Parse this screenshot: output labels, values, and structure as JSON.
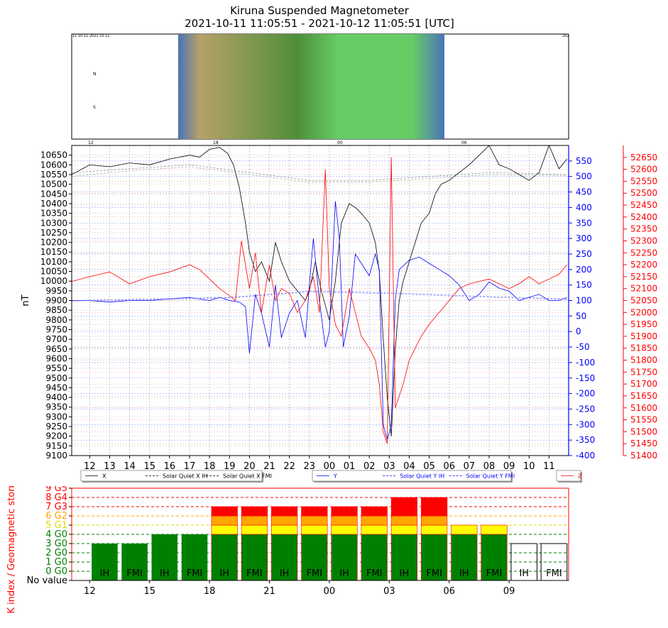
{
  "header": {
    "title_line1": "Kiruna Suspended Magnetometer",
    "title_line2": "2021-10-11 11:05:51 - 2021-10-12 11:05:51 [UTC]"
  },
  "keogram": {
    "left_labels": [
      "N",
      "S"
    ],
    "top_left_text": "11 10 11 2021 10 11",
    "top_right_text": "202",
    "bottom_ticks": [
      "12",
      "18",
      "00",
      "06"
    ],
    "colors": [
      "#4a73b8",
      "#b7a06a",
      "#4f8f3a",
      "#66cc66",
      "#4a73b8"
    ]
  },
  "legend": {
    "x": [
      "X",
      "Solar Quiet X IH",
      "Solar Quiet X FMI"
    ],
    "y": [
      "Y",
      "Solar Quiet Y IH",
      "Solar Quiet Y FMI"
    ],
    "z": [
      "Z"
    ]
  },
  "chart_data": [
    {
      "type": "line",
      "ylabel": "nT",
      "x_ticks": [
        "12",
        "13",
        "14",
        "15",
        "16",
        "17",
        "18",
        "19",
        "20",
        "21",
        "22",
        "23",
        "00",
        "01",
        "02",
        "03",
        "04",
        "05",
        "06",
        "07",
        "08",
        "09",
        "10",
        "11"
      ],
      "left_axis": {
        "color": "#000000",
        "ylim": [
          9100,
          10700
        ],
        "tick_start": 9100,
        "tick_end": 10650,
        "tick_step": 50
      },
      "right_axis_y": {
        "color": "#0000ff",
        "ylim": [
          -400,
          600
        ],
        "tick_start": -400,
        "tick_end": 550,
        "tick_step": 50
      },
      "right_axis_z": {
        "color": "#ff0000",
        "ylim": [
          51400,
          52700
        ],
        "tick_start": 51400,
        "tick_end": 52650,
        "tick_step": 50
      },
      "series": [
        {
          "name": "X",
          "color": "#000000",
          "axis": "left",
          "x": [
            11.1,
            12,
            13,
            14,
            15,
            16,
            17,
            17.5,
            18,
            18.5,
            18.9,
            19.2,
            19.5,
            19.8,
            20,
            20.3,
            20.6,
            21,
            21.3,
            21.6,
            22,
            22.4,
            22.8,
            23,
            23.3,
            23.6,
            24,
            24.3,
            24.6,
            25,
            25.3,
            25.6,
            26,
            26.3,
            26.5,
            26.7,
            26.9,
            27.1,
            27.3,
            27.5,
            27.7,
            28,
            28.3,
            28.6,
            29,
            29.3,
            29.6,
            30,
            30.5,
            31,
            31.5,
            32,
            32.5,
            33,
            33.5,
            34,
            34.5,
            35,
            35.5,
            35.9
          ],
          "y": [
            10550,
            10600,
            10590,
            10610,
            10600,
            10630,
            10650,
            10640,
            10680,
            10690,
            10660,
            10600,
            10480,
            10300,
            10150,
            10050,
            10100,
            10000,
            10200,
            10100,
            10000,
            9950,
            9900,
            9950,
            10100,
            9950,
            9800,
            10000,
            10300,
            10400,
            10380,
            10350,
            10300,
            10200,
            10050,
            9700,
            9400,
            9200,
            9650,
            9900,
            10000,
            10100,
            10200,
            10300,
            10350,
            10450,
            10500,
            10520,
            10560,
            10600,
            10650,
            10700,
            10600,
            10580,
            10550,
            10520,
            10560,
            10700,
            10580,
            10630
          ]
        },
        {
          "name": "Solar Quiet X IH",
          "color": "#888888",
          "axis": "left",
          "x": [
            11.1,
            14,
            17,
            20,
            23,
            26,
            29,
            32,
            35.9
          ],
          "y": [
            10560,
            10580,
            10600,
            10560,
            10520,
            10520,
            10540,
            10560,
            10550
          ]
        },
        {
          "name": "Solar Quiet X FMI",
          "color": "#aaaaaa",
          "axis": "left",
          "x": [
            11.1,
            14,
            17,
            20,
            23,
            26,
            29,
            32,
            35.9
          ],
          "y": [
            10540,
            10570,
            10590,
            10550,
            10510,
            10510,
            10530,
            10550,
            10545
          ]
        },
        {
          "name": "Y",
          "color": "#0000ff",
          "axis": "right_y",
          "x": [
            11.1,
            12,
            13,
            14,
            15,
            16,
            17,
            18,
            18.5,
            19,
            19.5,
            19.8,
            20,
            20.3,
            20.6,
            21,
            21.3,
            21.6,
            22,
            22.4,
            22.8,
            23,
            23.2,
            23.5,
            23.8,
            24,
            24.3,
            24.5,
            24.7,
            25,
            25.3,
            25.6,
            26,
            26.3,
            26.5,
            26.7,
            26.9,
            27.1,
            27.3,
            27.5,
            28,
            28.5,
            29,
            29.5,
            30,
            30.5,
            31,
            31.5,
            32,
            32.5,
            33,
            33.5,
            34,
            34.5,
            35,
            35.5,
            35.9
          ],
          "y": [
            100,
            100,
            95,
            100,
            100,
            105,
            110,
            100,
            110,
            100,
            95,
            80,
            -70,
            120,
            60,
            -50,
            150,
            -20,
            60,
            100,
            -20,
            150,
            300,
            100,
            -50,
            0,
            420,
            300,
            -50,
            50,
            250,
            220,
            180,
            250,
            200,
            -300,
            -350,
            -300,
            100,
            200,
            230,
            240,
            220,
            200,
            180,
            150,
            100,
            120,
            160,
            140,
            130,
            100,
            110,
            120,
            100,
            100,
            110
          ]
        },
        {
          "name": "Solar Quiet Y IH",
          "color": "#6666ff",
          "axis": "right_y",
          "x": [
            11.1,
            15,
            19,
            23,
            27,
            31,
            35.9
          ],
          "y": [
            100,
            105,
            110,
            130,
            125,
            115,
            105
          ]
        },
        {
          "name": "Solar Quiet Y FMI",
          "color": "#9999ff",
          "axis": "right_y",
          "x": [
            11.1,
            15,
            19,
            23,
            27,
            31,
            35.9
          ],
          "y": [
            98,
            103,
            108,
            128,
            122,
            112,
            103
          ]
        },
        {
          "name": "Z",
          "color": "#ff0000",
          "axis": "right_z",
          "x": [
            11.1,
            12,
            13,
            14,
            15,
            16,
            17,
            17.5,
            18,
            18.5,
            19,
            19.3,
            19.6,
            20,
            20.3,
            20.6,
            21,
            21.3,
            21.6,
            22,
            22.4,
            22.8,
            23,
            23.2,
            23.5,
            23.8,
            24,
            24.3,
            24.6,
            25,
            25.3,
            25.6,
            26,
            26.3,
            26.5,
            26.7,
            26.9,
            27.1,
            27.3,
            27.5,
            27.7,
            28,
            28.3,
            28.6,
            29,
            29.5,
            30,
            30.5,
            31,
            31.5,
            32,
            32.5,
            33,
            33.5,
            34,
            34.5,
            35,
            35.5,
            35.9
          ],
          "y": [
            52130,
            52150,
            52170,
            52120,
            52150,
            52170,
            52200,
            52180,
            52140,
            52100,
            52070,
            52050,
            52300,
            52100,
            52250,
            52000,
            52200,
            52050,
            52100,
            52080,
            52000,
            52050,
            52100,
            52150,
            52000,
            52600,
            52100,
            51950,
            51900,
            52100,
            52000,
            51900,
            51850,
            51800,
            51700,
            51500,
            51450,
            52650,
            51600,
            51650,
            51700,
            51800,
            51850,
            51900,
            51950,
            52000,
            52050,
            52100,
            52120,
            52130,
            52140,
            52120,
            52100,
            52120,
            52150,
            52120,
            52140,
            52160,
            52200
          ]
        }
      ]
    },
    {
      "type": "bar",
      "ylabel": "K index / Geomagnetic storm index",
      "y_tick_labels": [
        {
          "k": -1,
          "label": "No value",
          "color": "#000000"
        },
        {
          "k": 0,
          "label": "0 G0",
          "color": "#008000"
        },
        {
          "k": 1,
          "label": "1 G0",
          "color": "#008000"
        },
        {
          "k": 2,
          "label": "2 G0",
          "color": "#008000"
        },
        {
          "k": 3,
          "label": "3 G0",
          "color": "#008000"
        },
        {
          "k": 4,
          "label": "4 G0",
          "color": "#008000"
        },
        {
          "k": 5,
          "label": "5 G1",
          "color": "#dddd00"
        },
        {
          "k": 6,
          "label": "6 G2",
          "color": "#ffa500"
        },
        {
          "k": 7,
          "label": "7 G3",
          "color": "#ff0000"
        },
        {
          "k": 8,
          "label": "8 G4",
          "color": "#ff0000"
        },
        {
          "k": 9,
          "label": "9 G5",
          "color": "#ff0000"
        }
      ],
      "x_ticks": [
        "12",
        "15",
        "18",
        "21",
        "00",
        "03",
        "06",
        "09"
      ],
      "x_tick_hours": [
        12,
        15,
        18,
        21,
        24,
        27,
        30,
        33
      ],
      "ylim": [
        -1,
        9
      ],
      "bars": [
        {
          "label": "IH",
          "center": 12.75,
          "value": 3
        },
        {
          "label": "FMI",
          "center": 14.25,
          "value": 3
        },
        {
          "label": "IH",
          "center": 15.75,
          "value": 4
        },
        {
          "label": "FMI",
          "center": 17.25,
          "value": 4
        },
        {
          "label": "IH",
          "center": 18.75,
          "value": 7
        },
        {
          "label": "FMI",
          "center": 20.25,
          "value": 7
        },
        {
          "label": "IH",
          "center": 21.75,
          "value": 7
        },
        {
          "label": "FMI",
          "center": 23.25,
          "value": 7
        },
        {
          "label": "IH",
          "center": 24.75,
          "value": 7
        },
        {
          "label": "FMI",
          "center": 26.25,
          "value": 7
        },
        {
          "label": "IH",
          "center": 27.75,
          "value": 8
        },
        {
          "label": "FMI",
          "center": 29.25,
          "value": 8
        },
        {
          "label": "IH",
          "center": 30.75,
          "value": 5
        },
        {
          "label": "FMI",
          "center": 32.25,
          "value": 5
        },
        {
          "label": "IH",
          "center": 33.75,
          "value": null
        },
        {
          "label": "FMI",
          "center": 35.25,
          "value": null
        }
      ],
      "level_colors": {
        "green": "#008000",
        "yellow": "#ffff00",
        "orange": "#ffa500",
        "red": "#ff0000"
      }
    }
  ]
}
